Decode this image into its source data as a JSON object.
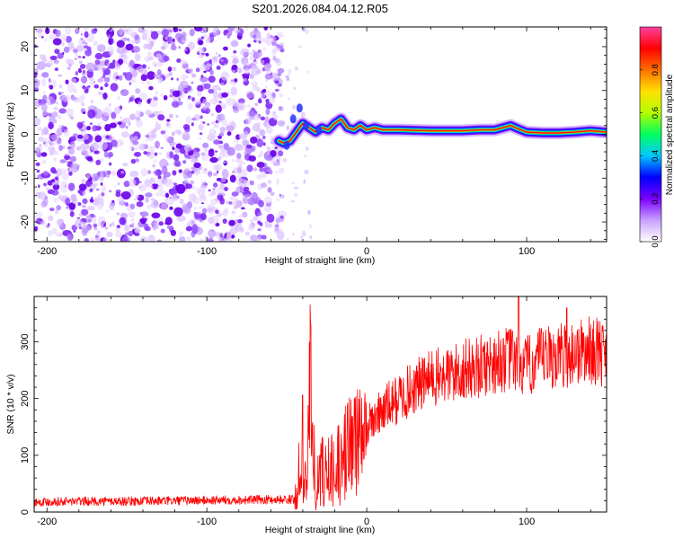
{
  "title": "S201.2026.084.04.12.R05",
  "chart_data": [
    {
      "type": "heatmap",
      "description_of_axes": "spectrogram",
      "xlabel": "Height of straight line (km)",
      "ylabel": "Frequency (Hz)",
      "xlim": [
        -208,
        150
      ],
      "ylim": [
        -24.5,
        24.5
      ],
      "xticks": [
        -200,
        -100,
        0,
        100
      ],
      "xtick_labels": [
        "-200",
        "-100",
        "0",
        "100"
      ],
      "yticks": [
        -20,
        -10,
        0,
        10,
        20
      ],
      "ytick_labels": [
        "-20",
        "-10",
        "0",
        "10",
        "20"
      ],
      "noise_region_x": [
        -208,
        -55
      ],
      "signal_ridge": {
        "x": [
          -55,
          -52,
          -48,
          -44,
          -40,
          -36,
          -32,
          -28,
          -24,
          -20,
          -16,
          -12,
          -8,
          -4,
          0,
          5,
          10,
          20,
          40,
          60,
          70,
          80,
          85,
          90,
          95,
          100,
          110,
          120,
          130,
          140,
          150
        ],
        "freq": [
          -1.5,
          -2.0,
          -1.5,
          0.5,
          2.5,
          1.5,
          0.5,
          1.5,
          1.0,
          2.5,
          3.5,
          1.5,
          1.0,
          2.0,
          1.0,
          1.5,
          1.0,
          1.0,
          0.8,
          0.8,
          1.0,
          1.0,
          1.5,
          2.0,
          1.2,
          0.5,
          0.3,
          0.3,
          0.5,
          0.8,
          0.5
        ]
      },
      "colorbar": {
        "label": "Normalized spectral amplitude",
        "range": [
          0,
          1
        ],
        "ticks": [
          0.0,
          0.2,
          0.4,
          0.6,
          0.8
        ],
        "tick_labels": [
          "0.0",
          "0.2",
          "0.4",
          "0.6",
          "0.8"
        ],
        "colors": [
          "#ffffff",
          "#c8a0ff",
          "#7a00ff",
          "#0000ff",
          "#00c8ff",
          "#00ff60",
          "#b4ff00",
          "#ffe000",
          "#ff7000",
          "#ff0000",
          "#ff40a0"
        ]
      }
    },
    {
      "type": "line",
      "xlabel": "Height of straight line (km)",
      "ylabel": "SNR (10 * v/v)",
      "xlim": [
        -208,
        150
      ],
      "ylim": [
        0,
        380
      ],
      "xticks": [
        -200,
        -100,
        0,
        100
      ],
      "xtick_labels": [
        "-200",
        "-100",
        "0",
        "100"
      ],
      "yticks": [
        0,
        100,
        200,
        300
      ],
      "ytick_labels": [
        "0",
        "100",
        "200",
        "300"
      ],
      "color": "#ff0000",
      "series": [
        {
          "name": "SNR",
          "x": [
            -208,
            -180,
            -150,
            -120,
            -90,
            -60,
            -45,
            -40,
            -38,
            -35,
            -32,
            -30,
            -25,
            -20,
            -15,
            -10,
            -5,
            0,
            10,
            20,
            30,
            40,
            50,
            60,
            70,
            80,
            90,
            95,
            100,
            110,
            120,
            130,
            140,
            150
          ],
          "values": [
            18,
            19,
            19,
            20,
            21,
            22,
            22,
            140,
            40,
            290,
            20,
            70,
            90,
            80,
            120,
            125,
            140,
            150,
            180,
            200,
            220,
            235,
            240,
            250,
            255,
            265,
            270,
            260,
            255,
            270,
            275,
            280,
            285,
            280
          ],
          "spikes": [
            [
              -35,
              330
            ],
            [
              95,
              380
            ],
            [
              125,
              360
            ]
          ]
        }
      ]
    }
  ]
}
